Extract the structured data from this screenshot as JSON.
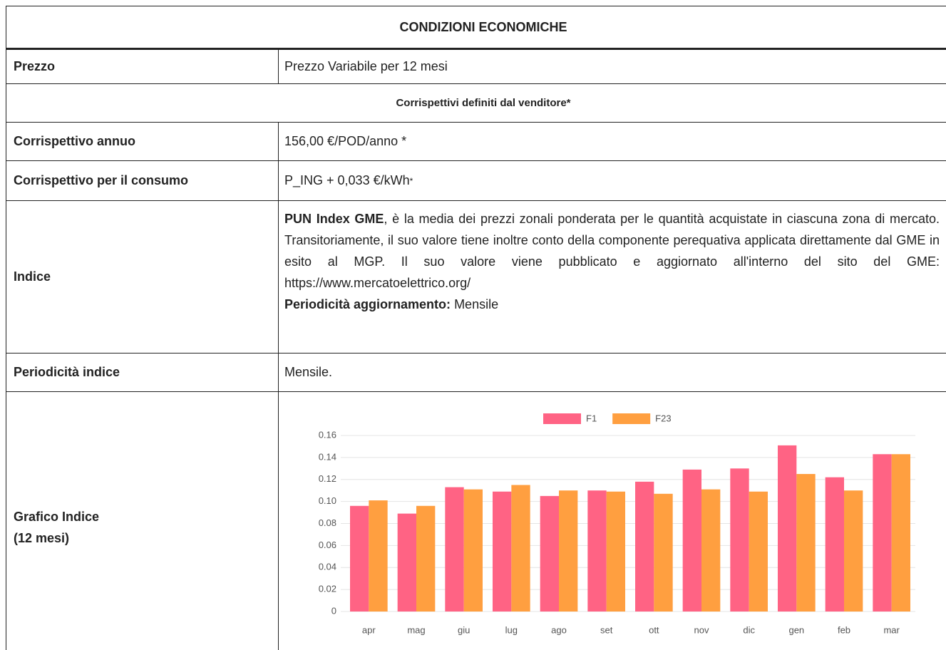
{
  "table": {
    "title": "CONDIZIONI ECONOMICHE",
    "prezzo": {
      "label": "Prezzo",
      "value": "Prezzo Variabile per 12 mesi"
    },
    "section": "Corrispettivi definiti dal venditore*",
    "annuo": {
      "label": "Corrispettivo annuo",
      "value": "156,00 €/POD/anno *"
    },
    "consumo": {
      "label": "Corrispettivo per il consumo",
      "value": "P_ING + 0,033 €/kWh",
      "note": "*"
    },
    "indice": {
      "label": "Indice",
      "lead": "PUN Index GME",
      "text": ", è la media dei prezzi zonali ponderata per le quantità acquistate in ciascuna zona di mercato. Transitoriamente, il suo valore tiene inoltre conto della componente perequativa applicata direttamente dal GME in esito al MGP. Il suo valore viene pubblicato e aggiornato all'interno del sito del GME: https://www.mercatoelettrico.org/",
      "update_label": "Periodicità aggiornamento:",
      "update_value": "Mensile"
    },
    "periodicita": {
      "label": "Periodicità indice",
      "value": "Mensile."
    },
    "grafico": {
      "label": [
        "Grafico Indice",
        "(12 mesi)"
      ]
    }
  },
  "chart_data": {
    "type": "bar",
    "categories": [
      "apr",
      "mag",
      "giu",
      "lug",
      "ago",
      "set",
      "ott",
      "nov",
      "dic",
      "gen",
      "feb",
      "mar"
    ],
    "series": [
      {
        "name": "F1",
        "color": "#ff6384",
        "values": [
          0.096,
          0.089,
          0.113,
          0.109,
          0.105,
          0.11,
          0.118,
          0.129,
          0.13,
          0.151,
          0.122,
          0.143
        ]
      },
      {
        "name": "F23",
        "color": "#ff9f40",
        "values": [
          0.101,
          0.096,
          0.111,
          0.115,
          0.11,
          0.109,
          0.107,
          0.111,
          0.109,
          0.125,
          0.11,
          0.143
        ]
      }
    ],
    "ylim": [
      0,
      0.16
    ],
    "yticks": [
      0,
      {
        "value": 0.02,
        "label": "0.02"
      },
      {
        "value": 0.04,
        "label": "0.04"
      },
      {
        "value": 0.06,
        "label": "0.06"
      },
      {
        "value": 0.08,
        "label": "0.08"
      },
      {
        "value": 0.1,
        "label": "0.10"
      },
      {
        "value": 0.12,
        "label": "0.12"
      },
      {
        "value": 0.14,
        "label": "0.14"
      },
      {
        "value": 0.16,
        "label": "0.16"
      }
    ],
    "grid": true,
    "legend": "top"
  }
}
